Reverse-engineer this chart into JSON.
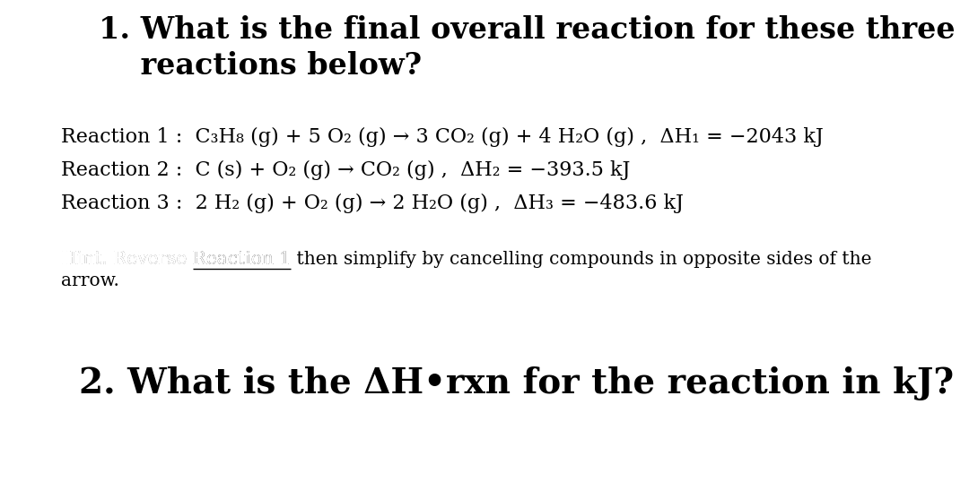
{
  "bg_color": "#ffffff",
  "text_color": "#000000",
  "title_line1": "1. What is the final overall reaction for these three",
  "title_line2": "    reactions below?",
  "reaction1": "Reaction 1 :  C₃H₈ (g) + 5 O₂ (g) → 3 CO₂ (g) + 4 H₂O (g) ,  ΔH₁ = −2043 kJ",
  "reaction2": "Reaction 2 :  C (s) + O₂ (g) → CO₂ (g) ,  ΔH₂ = −393.5 kJ",
  "reaction3": "Reaction 3 :  2 H₂ (g) + O₂ (g) → 2 H₂O (g) ,  ΔH₃ = −483.6 kJ",
  "hint_prefix": "Hint. Reverse ",
  "hint_underlined": "Reaction 1",
  "hint_suffix": " then simplify by cancelling compounds in opposite sides of the",
  "hint_line2": "arrow.",
  "question2": "2. What is the ΔH•rxn for the reaction in kJ?",
  "title_fontsize": 24,
  "reaction_fontsize": 16,
  "hint_fontsize": 14.5,
  "q2_fontsize": 28,
  "font_family": "DejaVu Serif"
}
